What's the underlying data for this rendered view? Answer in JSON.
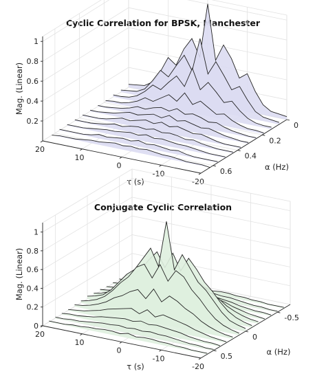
{
  "chart_data": [
    {
      "type": "3d-waterfall",
      "title": "Cyclic Correlation for BPSK, Manchester",
      "xlabel": "τ (s)",
      "ylabel": "α (Hz)",
      "zlabel": "Mag. (Linear)",
      "tau_ticks": [
        "20",
        "10",
        "0",
        "-10",
        "-20"
      ],
      "alpha_ticks": [
        "0",
        "0.2",
        "0.4",
        "0.6"
      ],
      "z_ticks": [
        "0.2",
        "0.4",
        "0.6",
        "0.8",
        "1"
      ],
      "tau_range": [
        -20,
        20
      ],
      "alpha_range": [
        0,
        0.7
      ],
      "z_range": [
        0,
        1.05
      ],
      "fill_color": "#dcdcf2",
      "grid": true,
      "tau": [
        -20,
        -18,
        -16,
        -14,
        -12,
        -10,
        -8,
        -6,
        -4,
        -2,
        0,
        2,
        4,
        6,
        8,
        10,
        12,
        14,
        16,
        18,
        20
      ],
      "series": [
        {
          "alpha": 0.0,
          "values": [
            0.03,
            0.04,
            0.05,
            0.1,
            0.22,
            0.38,
            0.32,
            0.5,
            0.62,
            0.45,
            1.0,
            0.45,
            0.62,
            0.5,
            0.32,
            0.38,
            0.22,
            0.1,
            0.05,
            0.04,
            0.03
          ]
        },
        {
          "alpha": 0.0625,
          "values": [
            0.02,
            0.03,
            0.04,
            0.08,
            0.18,
            0.3,
            0.25,
            0.38,
            0.5,
            0.36,
            0.7,
            0.36,
            0.5,
            0.38,
            0.25,
            0.3,
            0.18,
            0.08,
            0.04,
            0.03,
            0.02
          ]
        },
        {
          "alpha": 0.125,
          "values": [
            0.02,
            0.02,
            0.03,
            0.06,
            0.12,
            0.2,
            0.17,
            0.26,
            0.34,
            0.25,
            0.45,
            0.25,
            0.34,
            0.26,
            0.17,
            0.2,
            0.12,
            0.06,
            0.03,
            0.02,
            0.02
          ]
        },
        {
          "alpha": 0.1875,
          "values": [
            0.01,
            0.02,
            0.02,
            0.04,
            0.07,
            0.12,
            0.1,
            0.15,
            0.2,
            0.15,
            0.25,
            0.15,
            0.2,
            0.15,
            0.1,
            0.12,
            0.07,
            0.04,
            0.02,
            0.02,
            0.01
          ]
        },
        {
          "alpha": 0.25,
          "values": [
            0.01,
            0.01,
            0.02,
            0.03,
            0.05,
            0.08,
            0.07,
            0.1,
            0.12,
            0.1,
            0.14,
            0.1,
            0.12,
            0.1,
            0.07,
            0.08,
            0.05,
            0.03,
            0.02,
            0.01,
            0.01
          ]
        },
        {
          "alpha": 0.3125,
          "values": [
            0.01,
            0.01,
            0.02,
            0.03,
            0.05,
            0.07,
            0.06,
            0.08,
            0.1,
            0.08,
            0.12,
            0.08,
            0.1,
            0.08,
            0.06,
            0.07,
            0.05,
            0.03,
            0.02,
            0.01,
            0.01
          ]
        },
        {
          "alpha": 0.375,
          "values": [
            0.01,
            0.01,
            0.01,
            0.02,
            0.04,
            0.06,
            0.05,
            0.07,
            0.09,
            0.07,
            0.1,
            0.07,
            0.09,
            0.07,
            0.05,
            0.06,
            0.04,
            0.02,
            0.01,
            0.01,
            0.01
          ]
        },
        {
          "alpha": 0.4375,
          "values": [
            0.01,
            0.01,
            0.01,
            0.02,
            0.03,
            0.05,
            0.04,
            0.06,
            0.07,
            0.06,
            0.08,
            0.06,
            0.07,
            0.06,
            0.04,
            0.05,
            0.03,
            0.02,
            0.01,
            0.01,
            0.01
          ]
        },
        {
          "alpha": 0.5,
          "values": [
            0.01,
            0.01,
            0.01,
            0.02,
            0.03,
            0.04,
            0.04,
            0.05,
            0.06,
            0.05,
            0.07,
            0.05,
            0.06,
            0.05,
            0.04,
            0.04,
            0.03,
            0.02,
            0.01,
            0.01,
            0.01
          ]
        },
        {
          "alpha": 0.5625,
          "values": [
            0.01,
            0.01,
            0.01,
            0.01,
            0.02,
            0.04,
            0.03,
            0.04,
            0.05,
            0.04,
            0.06,
            0.04,
            0.05,
            0.04,
            0.03,
            0.04,
            0.02,
            0.01,
            0.01,
            0.01,
            0.01
          ]
        },
        {
          "alpha": 0.625,
          "values": [
            0.0,
            0.01,
            0.01,
            0.01,
            0.02,
            0.03,
            0.03,
            0.04,
            0.05,
            0.04,
            0.05,
            0.04,
            0.05,
            0.04,
            0.03,
            0.03,
            0.02,
            0.01,
            0.01,
            0.01,
            0.0
          ]
        }
      ]
    },
    {
      "type": "3d-waterfall",
      "title": "Conjugate Cyclic Correlation",
      "xlabel": "τ (s)",
      "ylabel": "α (Hz)",
      "zlabel": "Mag. (Linear)",
      "tau_ticks": [
        "20",
        "10",
        "0",
        "-10",
        "-20"
      ],
      "alpha_ticks": [
        "-0.5",
        "0",
        "0.5"
      ],
      "z_ticks": [
        "0",
        "0.2",
        "0.4",
        "0.6",
        "0.8",
        "1"
      ],
      "tau_range": [
        -20,
        20
      ],
      "alpha_range": [
        -0.7,
        0.7
      ],
      "z_range": [
        0,
        1.1
      ],
      "fill_color": "#dff0df",
      "grid": true,
      "tau": [
        -20,
        -18,
        -16,
        -14,
        -12,
        -10,
        -8,
        -6,
        -4,
        -2,
        0,
        2,
        4,
        6,
        8,
        10,
        12,
        14,
        16,
        18,
        20
      ],
      "series": [
        {
          "alpha": -0.6,
          "values": [
            0.01,
            0.01,
            0.01,
            0.02,
            0.02,
            0.03,
            0.03,
            0.04,
            0.04,
            0.03,
            0.05,
            0.03,
            0.04,
            0.04,
            0.03,
            0.03,
            0.02,
            0.02,
            0.01,
            0.01,
            0.01
          ]
        },
        {
          "alpha": -0.5,
          "values": [
            0.01,
            0.01,
            0.02,
            0.02,
            0.03,
            0.04,
            0.05,
            0.05,
            0.06,
            0.05,
            0.06,
            0.05,
            0.06,
            0.05,
            0.05,
            0.04,
            0.03,
            0.02,
            0.02,
            0.01,
            0.01
          ]
        },
        {
          "alpha": -0.4,
          "values": [
            0.01,
            0.02,
            0.02,
            0.03,
            0.04,
            0.06,
            0.07,
            0.08,
            0.09,
            0.08,
            0.1,
            0.08,
            0.09,
            0.08,
            0.07,
            0.06,
            0.04,
            0.03,
            0.02,
            0.02,
            0.01
          ]
        },
        {
          "alpha": -0.3,
          "values": [
            0.01,
            0.02,
            0.03,
            0.05,
            0.07,
            0.1,
            0.12,
            0.14,
            0.16,
            0.12,
            0.18,
            0.12,
            0.16,
            0.14,
            0.12,
            0.1,
            0.07,
            0.05,
            0.03,
            0.02,
            0.01
          ]
        },
        {
          "alpha": -0.2,
          "values": [
            0.02,
            0.03,
            0.05,
            0.08,
            0.12,
            0.18,
            0.22,
            0.28,
            0.35,
            0.25,
            0.4,
            0.25,
            0.35,
            0.28,
            0.22,
            0.18,
            0.12,
            0.08,
            0.05,
            0.03,
            0.02
          ]
        },
        {
          "alpha": -0.1,
          "values": [
            0.02,
            0.04,
            0.07,
            0.12,
            0.2,
            0.3,
            0.38,
            0.5,
            0.6,
            0.45,
            0.62,
            0.45,
            0.6,
            0.5,
            0.38,
            0.3,
            0.2,
            0.12,
            0.07,
            0.04,
            0.02
          ]
        },
        {
          "alpha": 0.0,
          "values": [
            0.03,
            0.05,
            0.08,
            0.15,
            0.25,
            0.35,
            0.42,
            0.55,
            0.68,
            0.5,
            1.0,
            0.5,
            0.68,
            0.55,
            0.42,
            0.35,
            0.25,
            0.15,
            0.08,
            0.05,
            0.03
          ]
        },
        {
          "alpha": 0.1,
          "values": [
            0.02,
            0.04,
            0.07,
            0.12,
            0.2,
            0.3,
            0.38,
            0.5,
            0.55,
            0.42,
            0.58,
            0.42,
            0.55,
            0.5,
            0.38,
            0.3,
            0.2,
            0.12,
            0.07,
            0.04,
            0.02
          ]
        },
        {
          "alpha": 0.2,
          "values": [
            0.02,
            0.03,
            0.05,
            0.08,
            0.12,
            0.18,
            0.22,
            0.28,
            0.32,
            0.24,
            0.36,
            0.24,
            0.32,
            0.28,
            0.22,
            0.18,
            0.12,
            0.08,
            0.05,
            0.03,
            0.02
          ]
        },
        {
          "alpha": 0.3,
          "values": [
            0.01,
            0.02,
            0.03,
            0.05,
            0.07,
            0.1,
            0.12,
            0.14,
            0.16,
            0.12,
            0.18,
            0.12,
            0.16,
            0.14,
            0.12,
            0.1,
            0.07,
            0.05,
            0.03,
            0.02,
            0.01
          ]
        },
        {
          "alpha": 0.4,
          "values": [
            0.01,
            0.02,
            0.02,
            0.03,
            0.04,
            0.06,
            0.07,
            0.08,
            0.09,
            0.08,
            0.1,
            0.08,
            0.09,
            0.08,
            0.07,
            0.06,
            0.04,
            0.03,
            0.02,
            0.02,
            0.01
          ]
        },
        {
          "alpha": 0.5,
          "values": [
            0.01,
            0.01,
            0.02,
            0.02,
            0.03,
            0.04,
            0.05,
            0.05,
            0.06,
            0.05,
            0.06,
            0.05,
            0.06,
            0.05,
            0.05,
            0.04,
            0.03,
            0.02,
            0.02,
            0.01,
            0.01
          ]
        },
        {
          "alpha": 0.6,
          "values": [
            0.01,
            0.01,
            0.01,
            0.02,
            0.02,
            0.03,
            0.03,
            0.04,
            0.04,
            0.03,
            0.05,
            0.03,
            0.04,
            0.04,
            0.03,
            0.03,
            0.02,
            0.02,
            0.01,
            0.01,
            0.01
          ]
        }
      ]
    }
  ]
}
